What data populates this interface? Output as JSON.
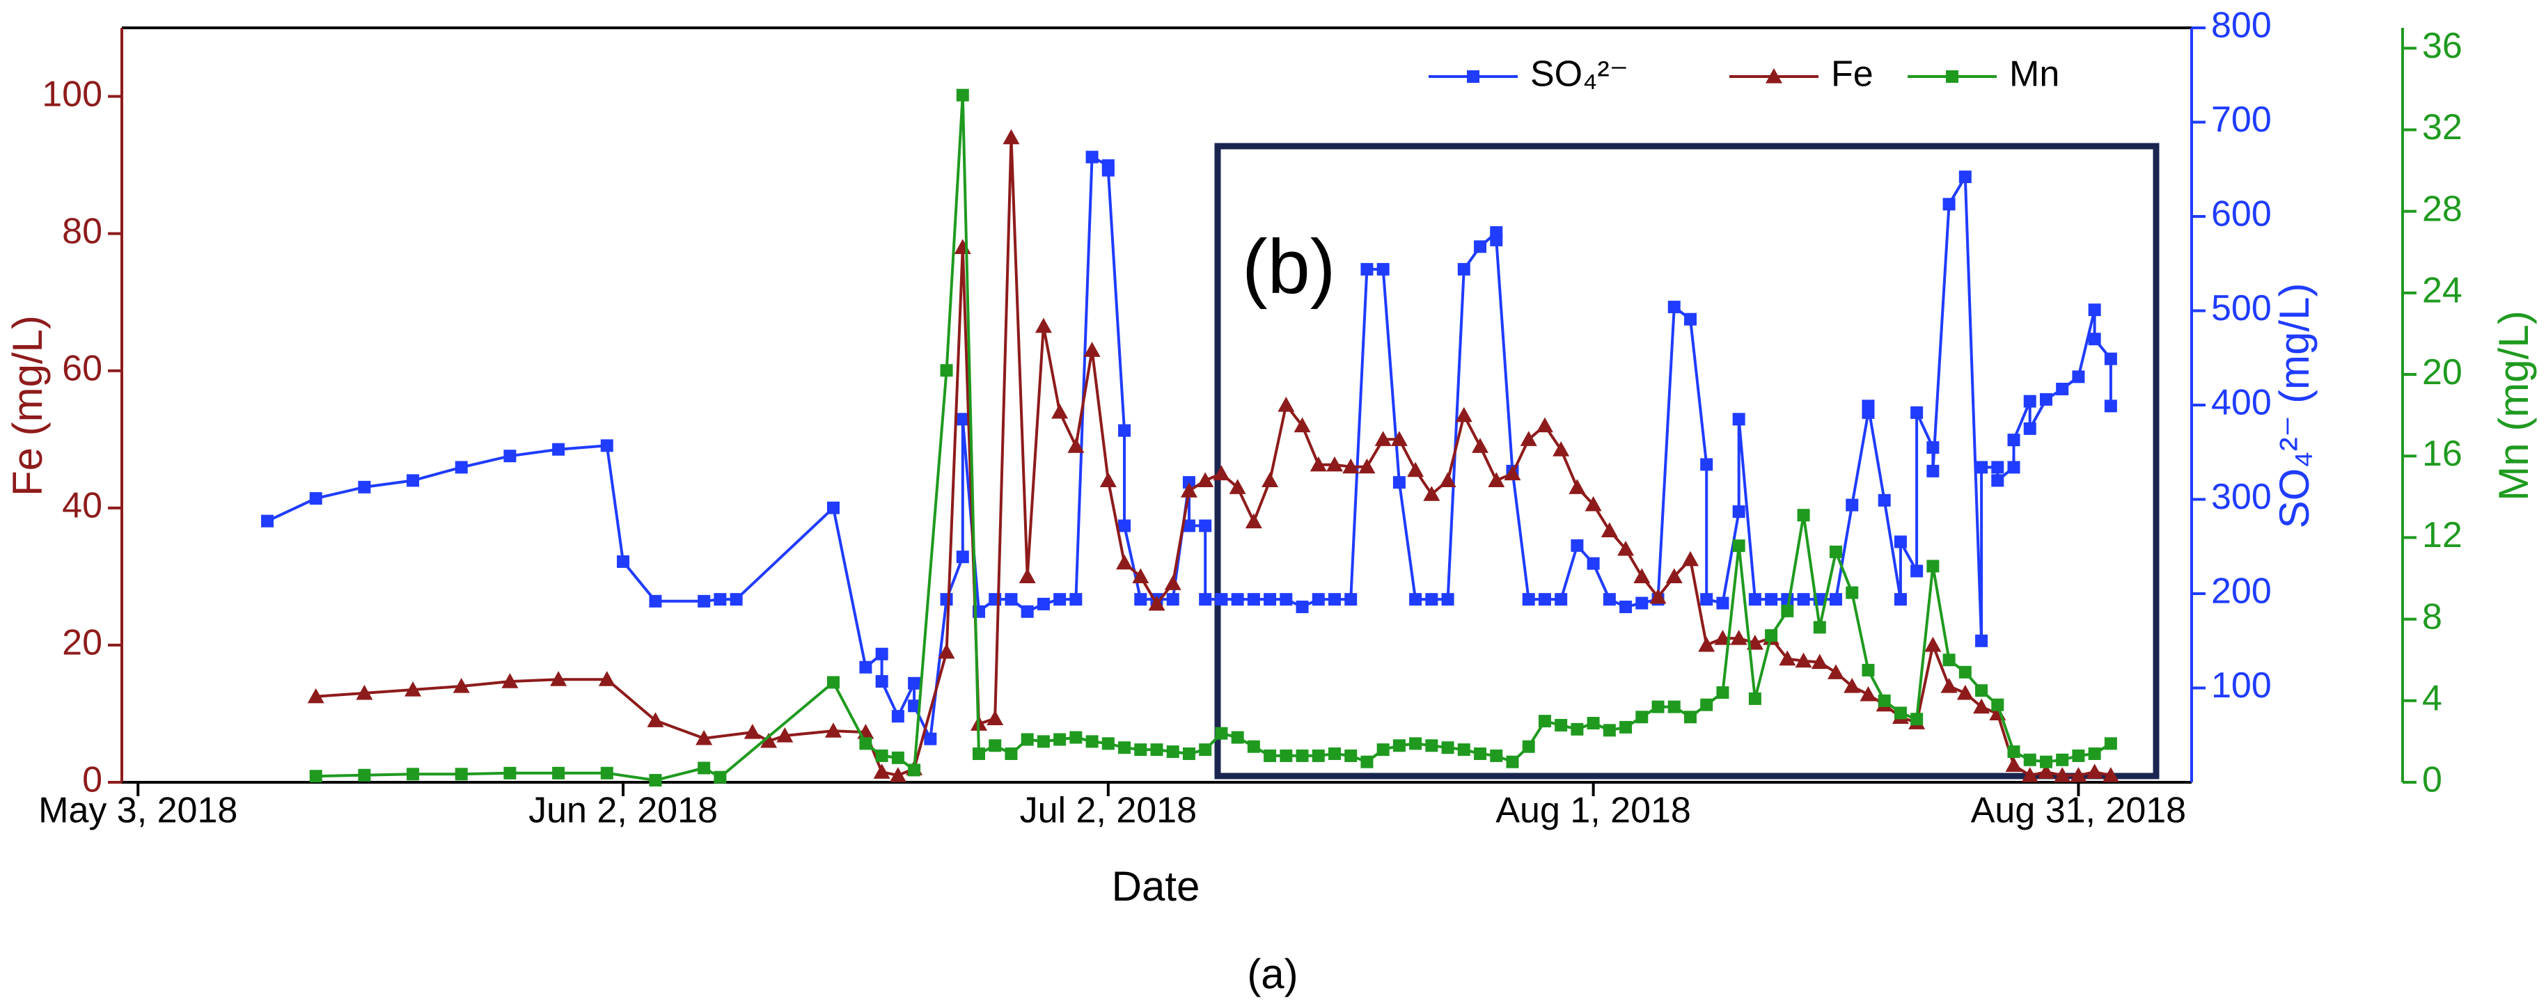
{
  "chart_data": {
    "type": "line",
    "xlabel": "Date",
    "ylabel": "Fe (mg/L)",
    "y2label": "SO₄²⁻ (mg/L)",
    "y3label": "Mn (mg/L)",
    "annotations": [
      "(b)"
    ],
    "caption": "(a)",
    "legend": "upper right",
    "xlim": [
      "2018-05-02",
      "2018-09-07"
    ],
    "xticks": [
      {
        "value": "2018-05-03",
        "label": "May 3, 2018"
      },
      {
        "value": "2018-06-02",
        "label": "Jun 2, 2018"
      },
      {
        "value": "2018-07-02",
        "label": "Jul 2, 2018"
      },
      {
        "value": "2018-08-01",
        "label": "Aug 1, 2018"
      },
      {
        "value": "2018-08-31",
        "label": "Aug 31, 2018"
      }
    ],
    "ylim": [
      0,
      110
    ],
    "yticks": [
      0,
      20,
      40,
      60,
      80,
      100
    ],
    "y2lim": [
      0,
      800
    ],
    "y2ticks": [
      100,
      200,
      300,
      400,
      500,
      600,
      700,
      800
    ],
    "y3lim": [
      0,
      37
    ],
    "y3ticks": [
      0,
      4,
      8,
      12,
      16,
      20,
      24,
      28,
      32,
      36
    ],
    "series": [
      {
        "name": "SO₄²⁻",
        "color": "#1f3cff",
        "marker": "square",
        "axis": "y2",
        "x": [
          "2018-05-11",
          "2018-05-14",
          "2018-05-17",
          "2018-05-20",
          "2018-05-23",
          "2018-05-26",
          "2018-05-29",
          "2018-06-01",
          "2018-06-02",
          "2018-06-04",
          "2018-06-07",
          "2018-06-08",
          "2018-06-09",
          "2018-06-15",
          "2018-06-17",
          "2018-06-18",
          "2018-06-18",
          "2018-06-19",
          "2018-06-20",
          "2018-06-20",
          "2018-06-21",
          "2018-06-22",
          "2018-06-23",
          "2018-06-23",
          "2018-06-24",
          "2018-06-25",
          "2018-06-26",
          "2018-06-27",
          "2018-06-28",
          "2018-06-29",
          "2018-06-30",
          "2018-07-01",
          "2018-07-02",
          "2018-07-02",
          "2018-07-03",
          "2018-07-03",
          "2018-07-04",
          "2018-07-05",
          "2018-07-06",
          "2018-07-07",
          "2018-07-07",
          "2018-07-08",
          "2018-07-08",
          "2018-07-09",
          "2018-07-10",
          "2018-07-11",
          "2018-07-12",
          "2018-07-13",
          "2018-07-14",
          "2018-07-15",
          "2018-07-16",
          "2018-07-17",
          "2018-07-18",
          "2018-07-19",
          "2018-07-20",
          "2018-07-21",
          "2018-07-22",
          "2018-07-23",
          "2018-07-24",
          "2018-07-25",
          "2018-07-26",
          "2018-07-26",
          "2018-07-27",
          "2018-07-28",
          "2018-07-29",
          "2018-07-30",
          "2018-07-31",
          "2018-08-01",
          "2018-08-02",
          "2018-08-03",
          "2018-08-04",
          "2018-08-05",
          "2018-08-06",
          "2018-08-07",
          "2018-08-08",
          "2018-08-08",
          "2018-08-09",
          "2018-08-10",
          "2018-08-10",
          "2018-08-11",
          "2018-08-12",
          "2018-08-13",
          "2018-08-14",
          "2018-08-15",
          "2018-08-16",
          "2018-08-17",
          "2018-08-18",
          "2018-08-18",
          "2018-08-19",
          "2018-08-20",
          "2018-08-20",
          "2018-08-21",
          "2018-08-21",
          "2018-08-22",
          "2018-08-22",
          "2018-08-23",
          "2018-08-24",
          "2018-08-25",
          "2018-08-25",
          "2018-08-26",
          "2018-08-26",
          "2018-08-27",
          "2018-08-27",
          "2018-08-28",
          "2018-08-28",
          "2018-08-29",
          "2018-08-30",
          "2018-08-31",
          "2018-09-01",
          "2018-09-01",
          "2018-09-02",
          "2018-09-02"
        ],
        "values": [
          277,
          301,
          313,
          320,
          334,
          346,
          353,
          357,
          234,
          192,
          192,
          194,
          194,
          291,
          122,
          136,
          107,
          70,
          105,
          81,
          46,
          194,
          239,
          385,
          181,
          194,
          194,
          181,
          189,
          194,
          194,
          663,
          654,
          649,
          373,
          272,
          194,
          194,
          194,
          318,
          272,
          272,
          194,
          194,
          194,
          194,
          194,
          194,
          186,
          194,
          194,
          194,
          544,
          544,
          318,
          194,
          194,
          194,
          544,
          568,
          583,
          575,
          330,
          194,
          194,
          194,
          251,
          232,
          194,
          186,
          190,
          194,
          504,
          491,
          337,
          194,
          190,
          287,
          385,
          194,
          194,
          194,
          194,
          194,
          194,
          294,
          392,
          399,
          299,
          194,
          255,
          224,
          392,
          355,
          330,
          613,
          642,
          150,
          334,
          334,
          320,
          334,
          363,
          404,
          375,
          406,
          417,
          430,
          501,
          470,
          449,
          399
        ]
      },
      {
        "name": "Fe",
        "color": "#8e1b1b",
        "marker": "triangle",
        "axis": "y",
        "x": [
          "2018-05-14",
          "2018-05-17",
          "2018-05-20",
          "2018-05-23",
          "2018-05-26",
          "2018-05-29",
          "2018-06-01",
          "2018-06-04",
          "2018-06-07",
          "2018-06-10",
          "2018-06-11",
          "2018-06-12",
          "2018-06-15",
          "2018-06-17",
          "2018-06-18",
          "2018-06-19",
          "2018-06-20",
          "2018-06-22",
          "2018-06-23",
          "2018-06-24",
          "2018-06-25",
          "2018-06-26",
          "2018-06-27",
          "2018-06-28",
          "2018-06-29",
          "2018-06-30",
          "2018-07-01",
          "2018-07-02",
          "2018-07-03",
          "2018-07-04",
          "2018-07-05",
          "2018-07-06",
          "2018-07-07",
          "2018-07-08",
          "2018-07-09",
          "2018-07-10",
          "2018-07-11",
          "2018-07-12",
          "2018-07-13",
          "2018-07-14",
          "2018-07-15",
          "2018-07-16",
          "2018-07-17",
          "2018-07-18",
          "2018-07-19",
          "2018-07-20",
          "2018-07-21",
          "2018-07-22",
          "2018-07-23",
          "2018-07-24",
          "2018-07-25",
          "2018-07-26",
          "2018-07-27",
          "2018-07-28",
          "2018-07-29",
          "2018-07-30",
          "2018-07-31",
          "2018-08-01",
          "2018-08-02",
          "2018-08-03",
          "2018-08-04",
          "2018-08-05",
          "2018-08-06",
          "2018-08-07",
          "2018-08-08",
          "2018-08-09",
          "2018-08-10",
          "2018-08-11",
          "2018-08-12",
          "2018-08-13",
          "2018-08-14",
          "2018-08-15",
          "2018-08-16",
          "2018-08-17",
          "2018-08-18",
          "2018-08-19",
          "2018-08-20",
          "2018-08-21",
          "2018-08-22",
          "2018-08-23",
          "2018-08-24",
          "2018-08-25",
          "2018-08-26",
          "2018-08-27",
          "2018-08-28",
          "2018-08-29",
          "2018-08-30",
          "2018-08-31",
          "2018-09-01",
          "2018-09-02"
        ],
        "values": [
          12.5,
          13,
          13.5,
          14,
          14.7,
          15,
          15,
          9,
          6.4,
          7.3,
          6,
          6.8,
          7.5,
          7.3,
          1.5,
          1,
          2,
          19,
          78,
          8.5,
          9.3,
          94,
          30,
          66.5,
          54,
          49,
          63,
          44,
          32,
          30,
          26,
          29,
          42.5,
          44,
          45,
          43,
          38,
          44,
          55,
          52,
          46.3,
          46.3,
          46,
          46,
          50,
          50,
          45.5,
          42,
          44,
          53.5,
          49,
          44,
          45,
          50,
          52,
          48.5,
          43,
          40.5,
          36.7,
          34,
          30,
          27,
          30,
          32.5,
          20,
          21,
          21,
          20.3,
          21,
          18,
          17.7,
          17.5,
          16,
          14,
          12.8,
          11.3,
          9.5,
          8.7,
          20,
          14,
          13,
          11,
          10,
          2.5,
          1,
          1.5,
          1,
          1,
          1.5,
          1
        ]
      },
      {
        "name": "Mn",
        "color": "#1f9a1f",
        "marker": "square",
        "axis": "y3",
        "x": [
          "2018-05-14",
          "2018-05-17",
          "2018-05-20",
          "2018-05-23",
          "2018-05-26",
          "2018-05-29",
          "2018-06-01",
          "2018-06-04",
          "2018-06-07",
          "2018-06-08",
          "2018-06-15",
          "2018-06-17",
          "2018-06-18",
          "2018-06-19",
          "2018-06-20",
          "2018-06-22",
          "2018-06-23",
          "2018-06-24",
          "2018-06-25",
          "2018-06-26",
          "2018-06-27",
          "2018-06-28",
          "2018-06-29",
          "2018-06-30",
          "2018-07-01",
          "2018-07-02",
          "2018-07-03",
          "2018-07-04",
          "2018-07-05",
          "2018-07-06",
          "2018-07-07",
          "2018-07-08",
          "2018-07-09",
          "2018-07-10",
          "2018-07-11",
          "2018-07-12",
          "2018-07-13",
          "2018-07-14",
          "2018-07-15",
          "2018-07-16",
          "2018-07-17",
          "2018-07-18",
          "2018-07-19",
          "2018-07-20",
          "2018-07-21",
          "2018-07-22",
          "2018-07-23",
          "2018-07-24",
          "2018-07-25",
          "2018-07-26",
          "2018-07-27",
          "2018-07-28",
          "2018-07-29",
          "2018-07-30",
          "2018-07-31",
          "2018-08-01",
          "2018-08-02",
          "2018-08-03",
          "2018-08-04",
          "2018-08-05",
          "2018-08-06",
          "2018-08-07",
          "2018-08-08",
          "2018-08-09",
          "2018-08-10",
          "2018-08-11",
          "2018-08-12",
          "2018-08-13",
          "2018-08-14",
          "2018-08-15",
          "2018-08-16",
          "2018-08-17",
          "2018-08-18",
          "2018-08-19",
          "2018-08-20",
          "2018-08-21",
          "2018-08-22",
          "2018-08-23",
          "2018-08-24",
          "2018-08-25",
          "2018-08-26",
          "2018-08-27",
          "2018-08-28",
          "2018-08-29",
          "2018-08-30",
          "2018-08-31",
          "2018-09-01",
          "2018-09-02"
        ],
        "values": [
          0.3,
          0.35,
          0.4,
          0.4,
          0.45,
          0.45,
          0.45,
          0.1,
          0.7,
          0.25,
          4.9,
          1.9,
          1.3,
          1.2,
          0.6,
          20.2,
          33.7,
          1.4,
          1.8,
          1.4,
          2.1,
          2.0,
          2.1,
          2.2,
          2.0,
          1.9,
          1.7,
          1.6,
          1.6,
          1.5,
          1.4,
          1.6,
          2.4,
          2.2,
          1.75,
          1.3,
          1.3,
          1.3,
          1.3,
          1.4,
          1.3,
          1.0,
          1.6,
          1.8,
          1.9,
          1.8,
          1.7,
          1.6,
          1.4,
          1.3,
          1.0,
          1.75,
          3.0,
          2.8,
          2.6,
          2.9,
          2.55,
          2.7,
          3.2,
          3.7,
          3.7,
          3.2,
          3.8,
          4.4,
          11.6,
          4.1,
          7.2,
          8.4,
          13.1,
          7.6,
          11.3,
          9.3,
          5.5,
          4.0,
          3.4,
          3.1,
          10.6,
          6.0,
          5.4,
          4.5,
          3.8,
          1.5,
          1.1,
          1.0,
          1.1,
          1.3,
          1.4,
          1.9
        ]
      }
    ]
  }
}
